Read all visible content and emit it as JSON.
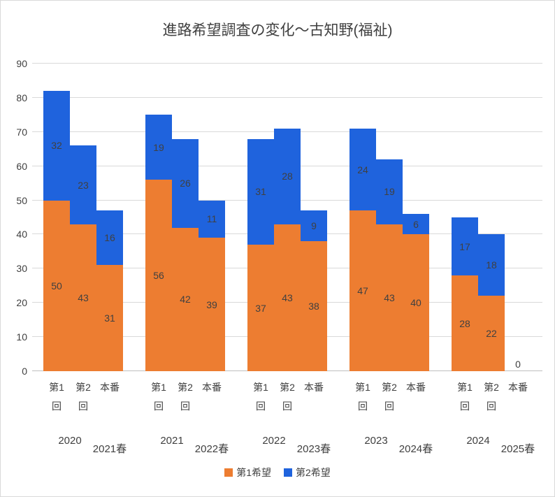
{
  "chart_data": {
    "type": "bar",
    "stacked": true,
    "title": "進路希望調査の変化～古知野(福祉)",
    "xlabel": "",
    "ylabel": "",
    "ylim": [
      0,
      90
    ],
    "ytick_step": 10,
    "grid": true,
    "legend_position": "bottom",
    "series": [
      {
        "name": "第1希望",
        "color": "#ED7D31"
      },
      {
        "name": "第2希望",
        "color": "#1F63DD"
      }
    ],
    "groups": [
      {
        "year_left": "2020",
        "year_right": "2021春",
        "bars": [
          {
            "label": "第1回",
            "values": [
              50,
              32
            ]
          },
          {
            "label": "第2回",
            "values": [
              43,
              23
            ]
          },
          {
            "label": "本番",
            "values": [
              31,
              16
            ]
          }
        ]
      },
      {
        "year_left": "2021",
        "year_right": "2022春",
        "bars": [
          {
            "label": "第1回",
            "values": [
              56,
              19
            ]
          },
          {
            "label": "第2回",
            "values": [
              42,
              26
            ]
          },
          {
            "label": "本番",
            "values": [
              39,
              11
            ]
          }
        ]
      },
      {
        "year_left": "2022",
        "year_right": "2023春",
        "bars": [
          {
            "label": "第1回",
            "values": [
              37,
              31
            ]
          },
          {
            "label": "第2回",
            "values": [
              43,
              28
            ]
          },
          {
            "label": "本番",
            "values": [
              38,
              9
            ]
          }
        ]
      },
      {
        "year_left": "2023",
        "year_right": "2024春",
        "bars": [
          {
            "label": "第1回",
            "values": [
              47,
              24
            ]
          },
          {
            "label": "第2回",
            "values": [
              43,
              19
            ]
          },
          {
            "label": "本番",
            "values": [
              40,
              6
            ]
          }
        ]
      },
      {
        "year_left": "2024",
        "year_right": "2025春",
        "bars": [
          {
            "label": "第1回",
            "values": [
              28,
              17
            ]
          },
          {
            "label": "第2回",
            "values": [
              22,
              18
            ]
          },
          {
            "label": "本番",
            "values": [
              0,
              0
            ]
          }
        ]
      }
    ],
    "colors": {
      "label_text": "#404040",
      "gridline": "#D9D9D9",
      "axis_line": "#BFBFBF"
    }
  }
}
